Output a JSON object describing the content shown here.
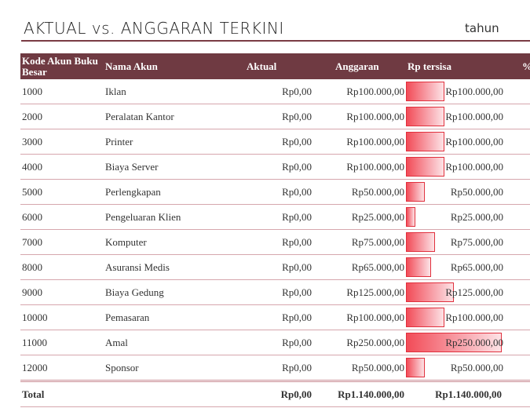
{
  "header": {
    "title": "AKTUAL vs. ANGGARAN TERKINI",
    "year_label": "tahun"
  },
  "columns": {
    "code": "Kode Akun Buku Besar",
    "name": "Nama Akun",
    "actual": "Aktual",
    "budget": "Anggaran",
    "remaining": "Rp tersisa",
    "percent": "% ter"
  },
  "rows": [
    {
      "code": "1000",
      "name": "Iklan",
      "actual": "Rp0,00",
      "budget": "Rp100.000,00",
      "remaining": "Rp100.000,00",
      "remaining_value": 100000
    },
    {
      "code": "2000",
      "name": "Peralatan Kantor",
      "actual": "Rp0,00",
      "budget": "Rp100.000,00",
      "remaining": "Rp100.000,00",
      "remaining_value": 100000
    },
    {
      "code": "3000",
      "name": "Printer",
      "actual": "Rp0,00",
      "budget": "Rp100.000,00",
      "remaining": "Rp100.000,00",
      "remaining_value": 100000
    },
    {
      "code": "4000",
      "name": "Biaya Server",
      "actual": "Rp0,00",
      "budget": "Rp100.000,00",
      "remaining": "Rp100.000,00",
      "remaining_value": 100000
    },
    {
      "code": "5000",
      "name": "Perlengkapan",
      "actual": "Rp0,00",
      "budget": "Rp50.000,00",
      "remaining": "Rp50.000,00",
      "remaining_value": 50000
    },
    {
      "code": "6000",
      "name": "Pengeluaran Klien",
      "actual": "Rp0,00",
      "budget": "Rp25.000,00",
      "remaining": "Rp25.000,00",
      "remaining_value": 25000
    },
    {
      "code": "7000",
      "name": "Komputer",
      "actual": "Rp0,00",
      "budget": "Rp75.000,00",
      "remaining": "Rp75.000,00",
      "remaining_value": 75000
    },
    {
      "code": "8000",
      "name": "Asuransi Medis",
      "actual": "Rp0,00",
      "budget": "Rp65.000,00",
      "remaining": "Rp65.000,00",
      "remaining_value": 65000
    },
    {
      "code": "9000",
      "name": "Biaya Gedung",
      "actual": "Rp0,00",
      "budget": "Rp125.000,00",
      "remaining": "Rp125.000,00",
      "remaining_value": 125000
    },
    {
      "code": "10000",
      "name": "Pemasaran",
      "actual": "Rp0,00",
      "budget": "Rp100.000,00",
      "remaining": "Rp100.000,00",
      "remaining_value": 100000
    },
    {
      "code": "11000",
      "name": "Amal",
      "actual": "Rp0,00",
      "budget": "Rp250.000,00",
      "remaining": "Rp250.000,00",
      "remaining_value": 250000
    },
    {
      "code": "12000",
      "name": "Sponsor",
      "actual": "Rp0,00",
      "budget": "Rp50.000,00",
      "remaining": "Rp50.000,00",
      "remaining_value": 50000
    }
  ],
  "total": {
    "label": "Total",
    "actual": "Rp0,00",
    "budget": "Rp1.140.000,00",
    "remaining": "Rp1.140.000,00"
  },
  "colors": {
    "header_bg": "#6f3a42",
    "accent_rule": "#7a3b44",
    "bar_fill": "#f24b57"
  }
}
